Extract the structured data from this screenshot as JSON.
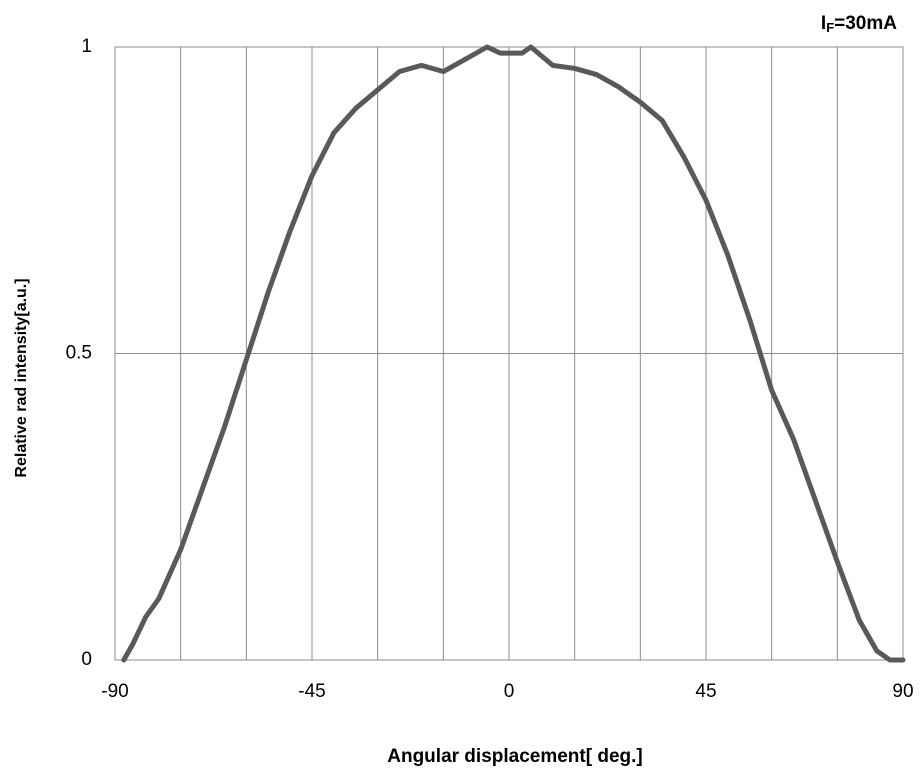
{
  "chart_data": {
    "type": "line",
    "x_label": "Angular displacement[ deg.]",
    "y_label": "Relative rad intensity[a.u.]",
    "annotation": {
      "text": "I",
      "subscript": "F",
      "suffix": "=30mA"
    },
    "x": [
      -88,
      -86,
      -83,
      -80,
      -75,
      -70,
      -65,
      -60,
      -55,
      -50,
      -45,
      -40,
      -35,
      -30,
      -25,
      -20,
      -15,
      -10,
      -5,
      -2,
      0,
      3,
      5,
      10,
      15,
      20,
      25,
      30,
      35,
      40,
      45,
      50,
      55,
      60,
      65,
      70,
      75,
      80,
      84,
      87,
      90
    ],
    "series": [
      {
        "color": "#595959",
        "values": [
          0,
          0.025,
          0.07,
          0.1,
          0.18,
          0.28,
          0.38,
          0.49,
          0.6,
          0.7,
          0.79,
          0.86,
          0.9,
          0.93,
          0.96,
          0.97,
          0.96,
          0.98,
          1.0,
          0.99,
          0.99,
          0.99,
          1.0,
          0.97,
          0.965,
          0.955,
          0.935,
          0.91,
          0.88,
          0.82,
          0.75,
          0.66,
          0.555,
          0.44,
          0.36,
          0.26,
          0.16,
          0.065,
          0.015,
          0,
          0
        ]
      }
    ],
    "xlim": [
      -90,
      90
    ],
    "xticks": [
      -90,
      -45,
      0,
      45,
      90
    ],
    "xminorticks": [
      -75,
      -60,
      -30,
      -15,
      15,
      30,
      60,
      75
    ],
    "ylim": [
      0,
      1
    ],
    "yticks": [
      0,
      0.5,
      1
    ],
    "grid": true
  }
}
